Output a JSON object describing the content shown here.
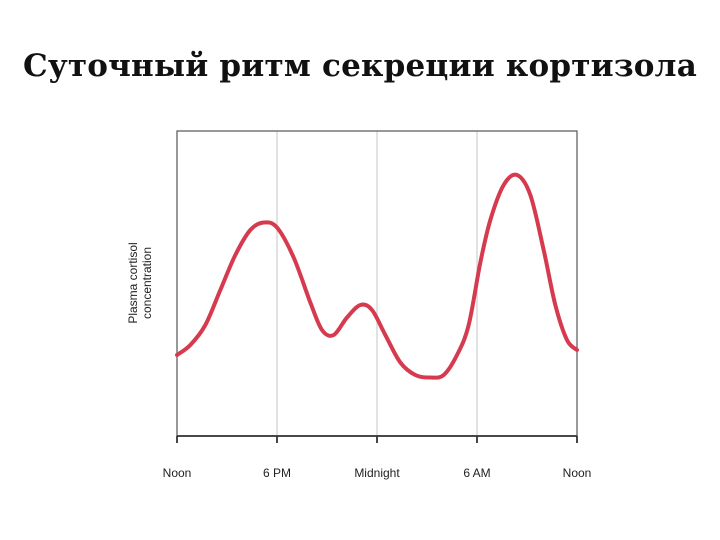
{
  "slide": {
    "title": "Суточный ритм секреции кортизола"
  },
  "chart_data": {
    "type": "line",
    "title": "Суточный ритм секреции кортизола",
    "xlabel": "",
    "ylabel": "Plasma cortisol concentration",
    "ylabel_lines": [
      "Plasma cortisol",
      "concentration"
    ],
    "x_ticks": [
      "Noon",
      "6 PM",
      "Midnight",
      "6 AM",
      "Noon"
    ],
    "x_unit": "hours after noon",
    "xlim": [
      0,
      24
    ],
    "ylim": [
      0,
      1
    ],
    "grid": "vertical",
    "series": [
      {
        "color": "#d63a4e",
        "x": [
          0,
          0.8,
          1.7,
          2.6,
          3.5,
          4.4,
          5.2,
          6.0,
          7.0,
          8.0,
          8.7,
          9.4,
          10.2,
          11.0,
          11.7,
          12.5,
          13.4,
          14.3,
          15.2,
          16.0,
          16.8,
          17.5,
          18.2,
          18.8,
          19.6,
          20.4,
          21.2,
          22.0,
          22.7,
          23.4,
          24.0
        ],
        "y": [
          0.18,
          0.22,
          0.3,
          0.44,
          0.58,
          0.68,
          0.71,
          0.69,
          0.57,
          0.39,
          0.28,
          0.26,
          0.33,
          0.38,
          0.36,
          0.26,
          0.15,
          0.1,
          0.09,
          0.1,
          0.18,
          0.3,
          0.55,
          0.72,
          0.86,
          0.9,
          0.82,
          0.6,
          0.38,
          0.24,
          0.2
        ]
      }
    ]
  }
}
